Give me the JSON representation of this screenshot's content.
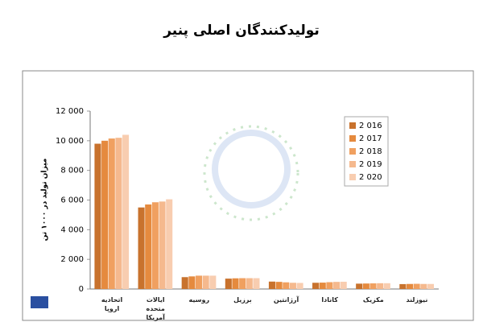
{
  "chart_data": {
    "type": "bar",
    "title": "تولیدکنندگان اصلی پنیر",
    "y_label": "میزان تولید در ۱۰۰۰ تن",
    "categories": [
      "اتحادیه اروپا",
      "ایالات متحده آمریکا",
      "روسیه",
      "برزیل",
      "آرژانتین",
      "کانادا",
      "مکزیک",
      "نیوزلند"
    ],
    "series": [
      {
        "name": "2 016",
        "color": "#c8722d",
        "values": [
          9800,
          5500,
          800,
          700,
          500,
          420,
          360,
          330
        ]
      },
      {
        "name": "2 017",
        "color": "#e58a3e",
        "values": [
          10000,
          5700,
          850,
          720,
          480,
          430,
          370,
          340
        ]
      },
      {
        "name": "2 018",
        "color": "#f0a060",
        "values": [
          10150,
          5850,
          900,
          730,
          450,
          460,
          380,
          350
        ]
      },
      {
        "name": "2 019",
        "color": "#f5b98e",
        "values": [
          10200,
          5900,
          900,
          730,
          420,
          480,
          390,
          340
        ]
      },
      {
        "name": "2 020",
        "color": "#f8cdb0",
        "values": [
          10400,
          6050,
          900,
          730,
          410,
          490,
          390,
          340
        ]
      }
    ],
    "ylim": [
      0,
      12000
    ],
    "yticks": [
      0,
      {
        "value": 2000,
        "label": "2 000"
      },
      {
        "value": 4000,
        "label": "4 000"
      },
      {
        "value": 6000,
        "label": "6 000"
      },
      {
        "value": 8000,
        "label": "8 000"
      },
      {
        "value": 10000,
        "label": "10 000"
      },
      {
        "value": 12000,
        "label": "12 000"
      }
    ],
    "legend": "upper-right"
  }
}
